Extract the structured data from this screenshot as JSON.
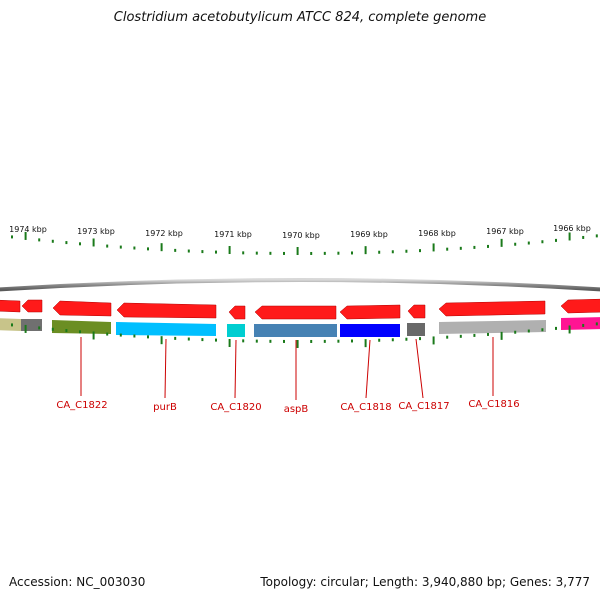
{
  "title": "Clostridium acetobutylicum ATCC 824, complete genome",
  "footer": {
    "accession": "Accession: NC_003030",
    "summary": "Topology: circular; Length: 3,940,880 bp; Genes: 3,777"
  },
  "colors": {
    "backbone": "#8a8a8a",
    "tick": "#1a7a1a",
    "gene_label": "#cc0000"
  },
  "scale_kbp": [
    "1974 kbp",
    "1973 kbp",
    "1972 kbp",
    "1971 kbp",
    "1970 kbp",
    "1969 kbp",
    "1968 kbp",
    "1967 kbp",
    "1966 kbp"
  ],
  "forward_genes": [
    {
      "strand": "reverse",
      "color": "#ff1a1a",
      "partial": true
    },
    {
      "strand": "reverse",
      "color": "#ff1a1a"
    },
    {
      "strand": "reverse",
      "color": "#ff1a1a"
    },
    {
      "strand": "reverse",
      "color": "#ff1a1a"
    },
    {
      "strand": "reverse",
      "color": "#ff1a1a"
    },
    {
      "strand": "reverse",
      "color": "#ff1a1a"
    },
    {
      "strand": "reverse",
      "color": "#ff1a1a"
    },
    {
      "strand": "reverse",
      "color": "#ff1a1a"
    },
    {
      "strand": "reverse",
      "color": "#ff1a1a"
    },
    {
      "strand": "reverse",
      "color": "#ff1a1a",
      "partial": true
    }
  ],
  "cog_blocks": [
    {
      "color": "#c8c48a"
    },
    {
      "color": "#707070"
    },
    {
      "color": "#6b8e23"
    },
    {
      "color": "#00bfff"
    },
    {
      "color": "#00ced1"
    },
    {
      "color": "#4682b4"
    },
    {
      "color": "#0000ff"
    },
    {
      "color": "#696969"
    },
    {
      "color": "#b0b0b0"
    },
    {
      "color": "#ff1493"
    }
  ],
  "gene_labels": [
    "CA_C1822",
    "purB",
    "CA_C1820",
    "aspB",
    "CA_C1818",
    "CA_C1817",
    "CA_C1816"
  ]
}
